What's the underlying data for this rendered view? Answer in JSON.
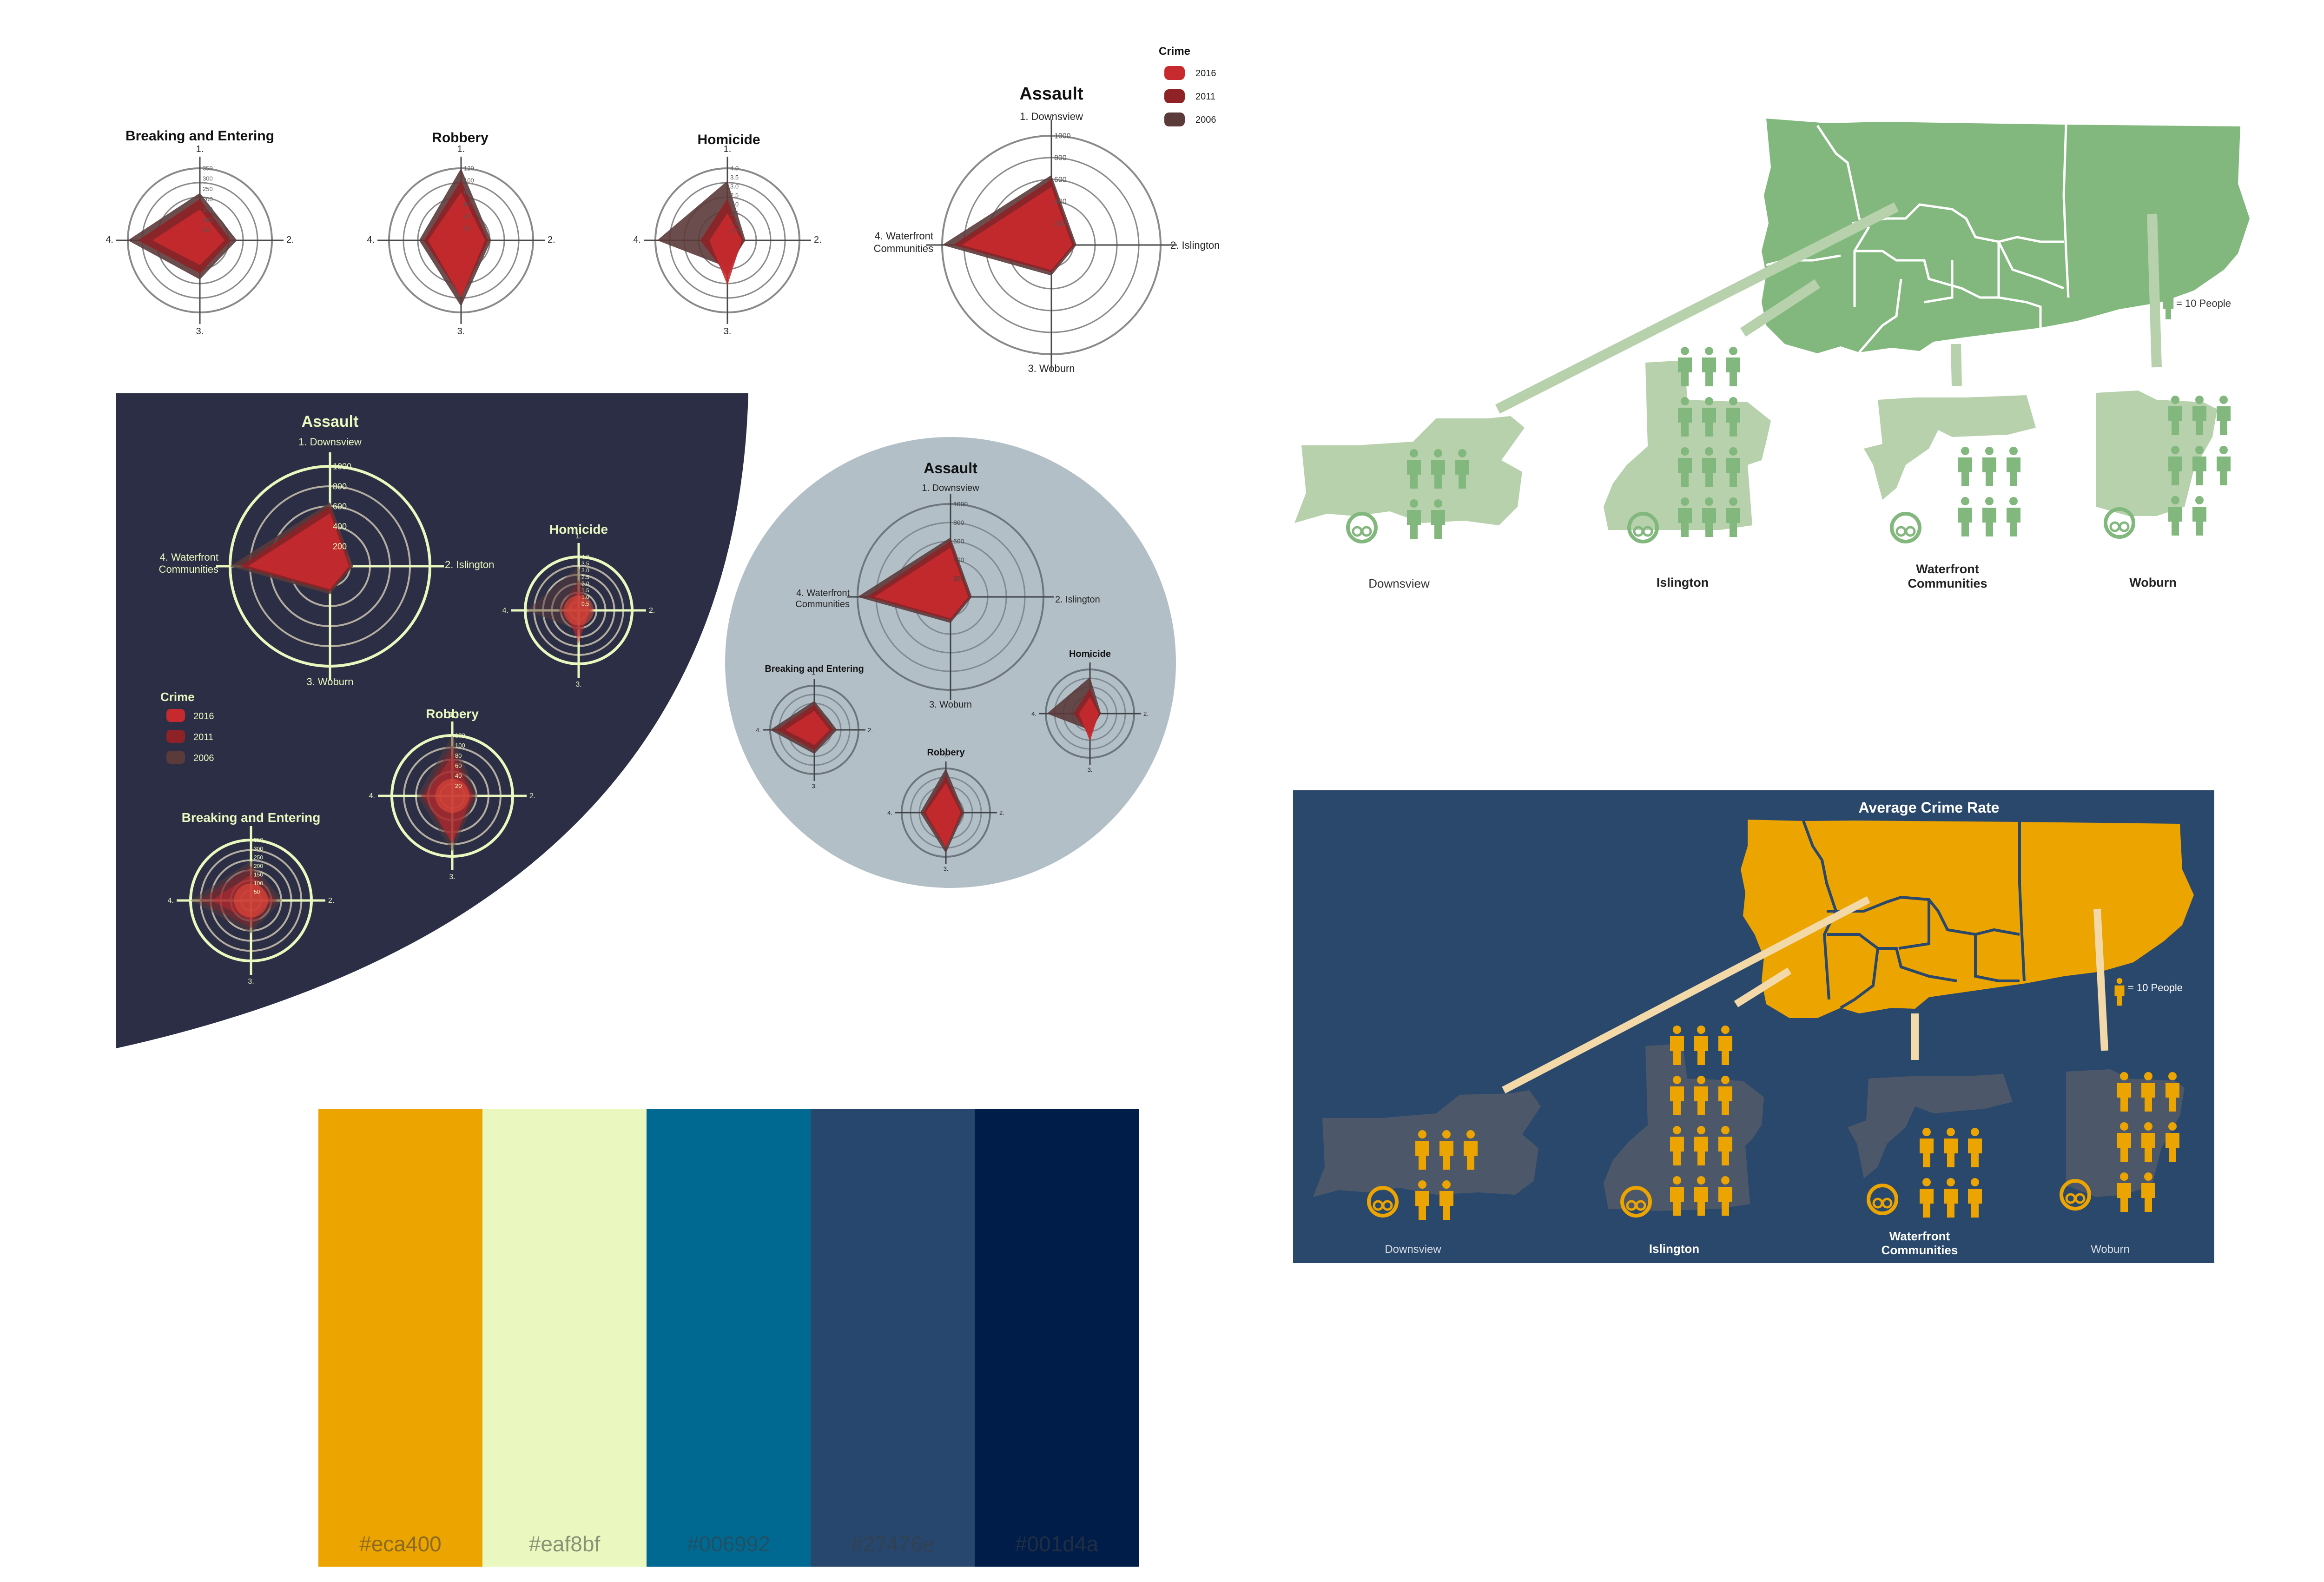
{
  "colors": {
    "red_2016": "#c62a2e",
    "red_2011": "#8e2227",
    "red_2006": "#5b3a3a",
    "navy_panel": "#2c2e45",
    "grey_circle": "#b3bfc7",
    "green_map": "#82b87d",
    "green_light": "#b6d1ab",
    "blue_panel": "#2a476c",
    "orange_map": "#eca400",
    "grey_district": "#4c5869",
    "cream_ring": "#eaf8bf"
  },
  "legend": {
    "title": "Crime",
    "items": [
      {
        "label": "2016",
        "color": "#c62a2e"
      },
      {
        "label": "2011",
        "color": "#8e2227"
      },
      {
        "label": "2006",
        "color": "#5b3a3a"
      }
    ]
  },
  "chart_data": [
    {
      "type": "radar",
      "title": "Assault",
      "axes": [
        "1. Downsview",
        "2. Islington",
        "3. Woburn",
        "4. Waterfront Communities"
      ],
      "ticks": [
        "200",
        "400",
        "600",
        "800",
        "1000"
      ],
      "rlim": [
        0,
        1000
      ],
      "series": [
        {
          "name": "2006",
          "values": [
            640,
            230,
            280,
            1000
          ]
        },
        {
          "name": "2011",
          "values": [
            600,
            210,
            250,
            900
          ]
        },
        {
          "name": "2016",
          "values": [
            530,
            190,
            230,
            820
          ]
        }
      ]
    },
    {
      "type": "radar",
      "title": "Breaking and Entering",
      "axes": [
        "1.",
        "2.",
        "3.",
        "4."
      ],
      "ticks": [
        "50",
        "100",
        "150",
        "200",
        "250",
        "300",
        "350"
      ],
      "rlim": [
        0,
        350
      ],
      "series": [
        {
          "name": "2006",
          "values": [
            230,
            180,
            190,
            350
          ]
        },
        {
          "name": "2011",
          "values": [
            200,
            150,
            160,
            300
          ]
        },
        {
          "name": "2016",
          "values": [
            150,
            120,
            120,
            230
          ]
        }
      ]
    },
    {
      "type": "radar",
      "title": "Robbery",
      "axes": [
        "1.",
        "2.",
        "3.",
        "4."
      ],
      "ticks": [
        "20",
        "40",
        "60",
        "80",
        "100",
        "120"
      ],
      "rlim": [
        0,
        120
      ],
      "series": [
        {
          "name": "2006",
          "values": [
            120,
            50,
            110,
            70
          ]
        },
        {
          "name": "2011",
          "values": [
            100,
            45,
            95,
            62
          ]
        },
        {
          "name": "2016",
          "values": [
            80,
            40,
            95,
            55
          ]
        }
      ]
    },
    {
      "type": "radar",
      "title": "Homicide",
      "axes": [
        "1.",
        "2.",
        "3.",
        "4."
      ],
      "ticks": [
        "0.5",
        "1.0",
        "1.5",
        "2.0",
        "2.5",
        "3.0",
        "3.5",
        "4.0"
      ],
      "rlim": [
        0,
        4
      ],
      "series": [
        {
          "name": "2006",
          "values": [
            3.3,
            1.0,
            1.5,
            3.9
          ]
        },
        {
          "name": "2011",
          "values": [
            2.3,
            0.9,
            2.0,
            1.5
          ]
        },
        {
          "name": "2016",
          "values": [
            1.5,
            0.8,
            2.5,
            1.0
          ]
        }
      ]
    }
  ],
  "maps": {
    "legend_label": "= 10 People",
    "panel_title": "Average Crime Rate",
    "districts": [
      {
        "name": "Downsview",
        "people_icons": 5,
        "bold": false
      },
      {
        "name": "Islington",
        "people_icons": 12,
        "bold": true
      },
      {
        "name": "Waterfront\nCommunities",
        "line1": "Waterfront",
        "line2": "Communities",
        "people_icons": 6,
        "bold": true
      },
      {
        "name": "Woburn",
        "people_icons": 8,
        "bold": true
      }
    ]
  },
  "palette": [
    {
      "hex": "#eca400",
      "label": "#eca400"
    },
    {
      "hex": "#eaf8bf",
      "label": "#eaf8bf"
    },
    {
      "hex": "#006992",
      "label": "#006992"
    },
    {
      "hex": "#27476e",
      "label": "#27476e"
    },
    {
      "hex": "#001d4a",
      "label": "#001d4a"
    }
  ]
}
